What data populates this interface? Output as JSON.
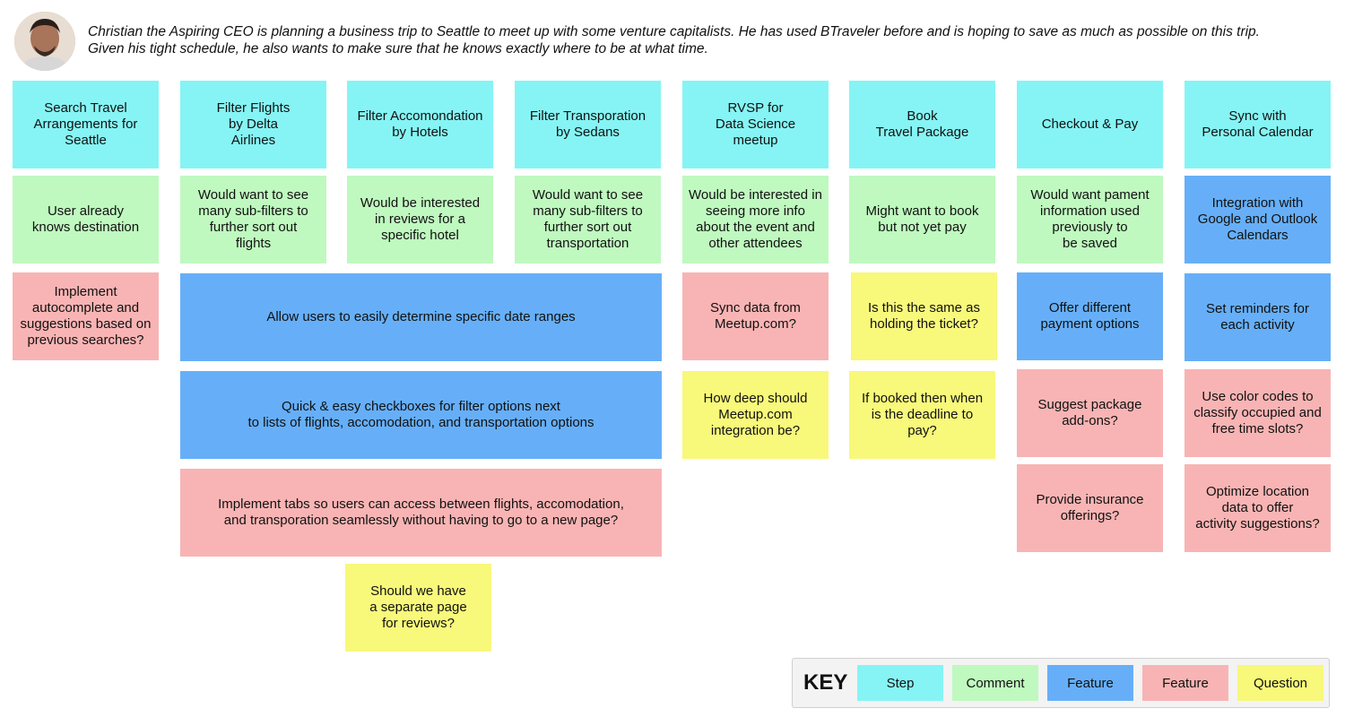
{
  "persona": {
    "line1": "Christian the Aspiring CEO is planning a business trip to Seattle to meet up with some venture capitalists. He has used BTraveler before and is hoping to save as much as possible on this trip.",
    "line2": "Given his tight schedule, he also wants to make sure that he knows exactly where to be at what time."
  },
  "colors": {
    "step": "#86f4f4",
    "comment": "#bff9bf",
    "feature_blue": "#66aff8",
    "feature_pink": "#f8b4b4",
    "question": "#f8f87b"
  },
  "steps": [
    "Search Travel\nArrangements for\nSeattle",
    "Filter Flights\nby Delta\nAirlines",
    "Filter Accomondation\nby Hotels",
    "Filter Transporation\nby Sedans",
    "RVSP for\nData Science\nmeetup",
    "Book\nTravel Package",
    "Checkout & Pay",
    "Sync with\nPersonal Calendar"
  ],
  "comments": [
    "User already\nknows destination",
    "Would want to see\nmany sub-filters to\nfurther sort out\nflights",
    "Would be interested\nin reviews for a\nspecific hotel",
    "Would want to see\nmany sub-filters to\nfurther sort out\ntransportation",
    "Would be interested in\nseeing more info\nabout the event and\nother attendees",
    "Might want to book\nbut not yet pay",
    "Would want pament\ninformation used\npreviously to\nbe saved"
  ],
  "features": {
    "autocomplete": "Implement\nautocomplete and\nsuggestions based on\nprevious searches?",
    "date_ranges": "Allow users to easily determine specific date ranges",
    "checkboxes": "Quick & easy checkboxes for filter options next\nto lists of flights, accomodation, and transportation options",
    "tabs": "Implement tabs so users can access between flights, accomodation,\nand transporation seamlessly without having to go to a new page?",
    "meetup_sync": "Sync data from\nMeetup.com?",
    "payment_options": "Offer different\npayment options",
    "package_addons": "Suggest package\nadd-ons?",
    "insurance": "Provide insurance\nofferings?",
    "calendar_integration": "Integration with\nGoogle and Outlook\nCalendars",
    "reminders": "Set reminders for\neach activity",
    "color_codes": "Use color codes to\nclassify occupied and\nfree time slots?",
    "location_data": "Optimize location\ndata to offer\nactivity suggestions?"
  },
  "questions": {
    "reviews_page": "Should we have\na separate page\nfor reviews?",
    "meetup_depth": "How deep should\nMeetup.com\nintegration be?",
    "holding_ticket": "Is this the same as\nholding the ticket?",
    "deadline": "If booked then when\nis the deadline to\npay?"
  },
  "key": {
    "title": "KEY",
    "items": [
      "Step",
      "Comment",
      "Feature",
      "Feature",
      "Question"
    ]
  }
}
